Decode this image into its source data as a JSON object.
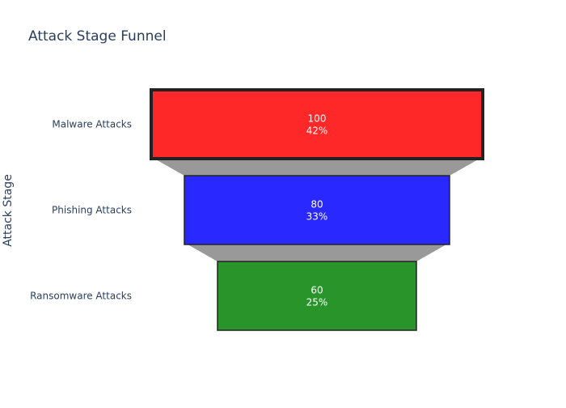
{
  "chart_data": {
    "type": "funnel",
    "title": "Attack Stage Funnel",
    "ylabel": "Attack Stage",
    "xlabel": "",
    "categories": [
      "Malware Attacks",
      "Phishing Attacks",
      "Ransomware Attacks"
    ],
    "values": [
      100,
      80,
      60
    ],
    "percent_labels": [
      "42%",
      "33%",
      "25%"
    ],
    "colors": [
      "#ff2828",
      "#2828ff",
      "#28942a"
    ],
    "connector_color": "#999999",
    "highlighted_stage": "Malware Attacks",
    "legend": "none"
  }
}
